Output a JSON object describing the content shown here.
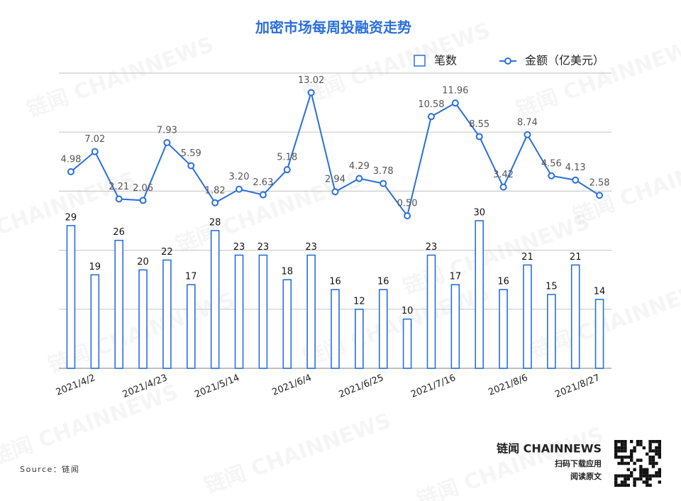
{
  "chart_data": {
    "type": "bar",
    "title": "加密市场每周投融资走势",
    "categories": [
      null,
      "2021/4/2",
      null,
      null,
      "2021/4/23",
      null,
      null,
      "2021/5/14",
      null,
      null,
      "2021/6/4",
      null,
      null,
      "2021/6/25",
      null,
      null,
      "2021/7/16",
      null,
      null,
      "2021/8/6",
      null,
      null,
      "2021/8/27"
    ],
    "series": [
      {
        "name": "笔数",
        "type": "bar",
        "color": "#2a6fdb",
        "values": [
          29,
          19,
          26,
          20,
          22,
          17,
          28,
          23,
          23,
          18,
          23,
          16,
          12,
          16,
          10,
          23,
          17,
          30,
          16,
          21,
          15,
          21,
          14
        ]
      },
      {
        "name": "金额（亿美元）",
        "type": "line",
        "axis": "y2",
        "color": "#2a6fdb",
        "values": [
          4.98,
          7.02,
          2.21,
          2.06,
          7.93,
          5.59,
          1.82,
          3.2,
          2.63,
          5.18,
          13.02,
          2.94,
          4.29,
          3.78,
          0.5,
          10.58,
          11.96,
          8.55,
          3.42,
          8.74,
          4.56,
          4.13,
          2.58
        ],
        "value_labels": [
          "4.98",
          "7.02",
          "2.21",
          "2.06",
          "7.93",
          "5.59",
          "1.82",
          "3.20",
          "2.63",
          "5.18",
          "13.02",
          "2.94",
          "4.29",
          "3.78",
          "0.50",
          "10.58",
          "11.96",
          "8.55",
          "3.42",
          "8.74",
          "4.56",
          "4.13",
          "2.58"
        ]
      }
    ],
    "ylim": [
      0,
      60
    ],
    "yticks": [
      0,
      12,
      24,
      36,
      48,
      60
    ],
    "y2lim": [
      -15,
      15
    ],
    "grid": true,
    "legend": "top-right"
  },
  "source": "Source：链闻",
  "watermark": "链闻 CHAINNEWS",
  "footer": {
    "brand": "链闻 CHAINNEWS",
    "download": "扫码下载应用",
    "read": "阅读原文"
  }
}
